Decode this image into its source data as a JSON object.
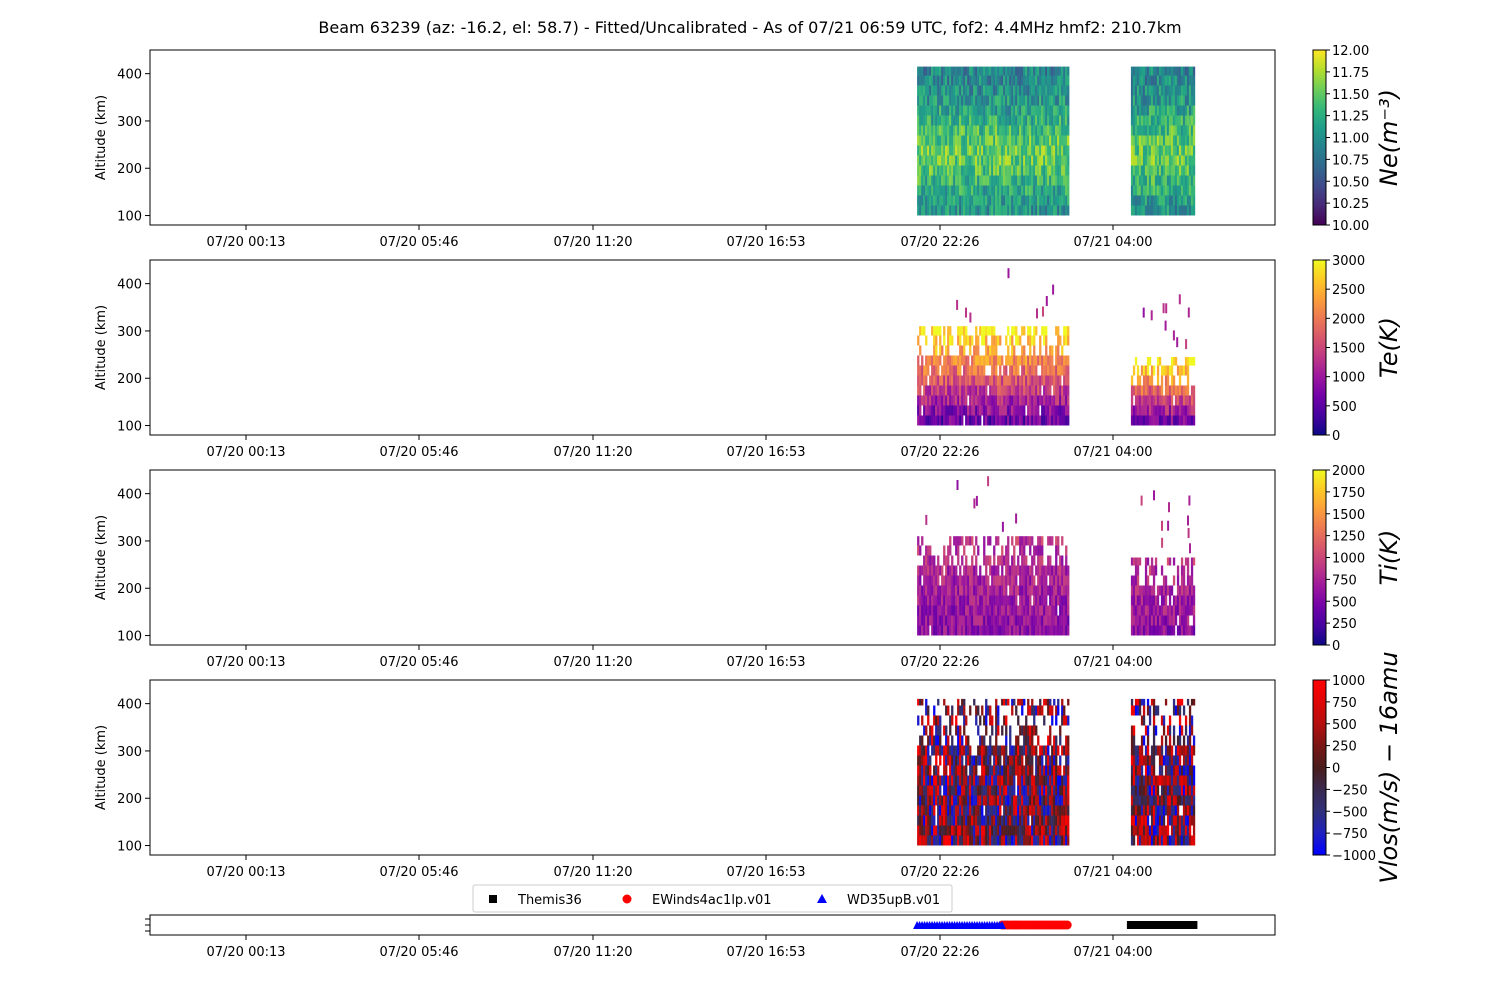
{
  "title": "Beam 63239 (az: -16.2, el: 58.7) - Fitted/Uncalibrated - As of 07/21 06:59 UTC, fof2: 4.4MHz  hmf2: 210.7km",
  "colors": {
    "themis": "#000000",
    "ewinds": "#ff0000",
    "wd35": "#0000ff"
  },
  "chart_data": [
    {
      "type": "heatmap",
      "name": "ne",
      "ylabel": "Altitude (km)",
      "colorbar_label": "Ne(m⁻³)",
      "colormap": "viridis",
      "clim": [
        10.0,
        12.0
      ],
      "colorbar_ticks": [
        "10.00",
        "10.25",
        "10.50",
        "10.75",
        "11.00",
        "11.25",
        "11.50",
        "11.75",
        "12.00"
      ],
      "yticks": [
        100,
        200,
        300,
        400
      ],
      "ylim": [
        80,
        450
      ],
      "xtick_labels": [
        "07/20 00:13",
        "07/20 05:46",
        "07/20 11:20",
        "07/20 16:53",
        "07/20 22:26",
        "07/21 04:00"
      ],
      "data_blocks": [
        {
          "start": "07/20 21:46",
          "end": "07/21 02:38",
          "alt_min": 100,
          "alt_max": 415
        },
        {
          "start": "07/21 04:38",
          "end": "07/21 06:40",
          "alt_min": 100,
          "alt_max": 415
        }
      ]
    },
    {
      "type": "heatmap",
      "name": "te",
      "ylabel": "Altitude (km)",
      "colorbar_label": "Te(K)",
      "colormap": "plasma",
      "clim": [
        0,
        3000
      ],
      "colorbar_ticks": [
        "0",
        "500",
        "1000",
        "1500",
        "2000",
        "2500",
        "3000"
      ],
      "yticks": [
        100,
        200,
        300,
        400
      ],
      "ylim": [
        80,
        450
      ],
      "xtick_labels": [
        "07/20 00:13",
        "07/20 05:46",
        "07/20 11:20",
        "07/20 16:53",
        "07/20 22:26",
        "07/21 04:00"
      ],
      "data_blocks": [
        {
          "start": "07/20 21:46",
          "end": "07/21 02:38",
          "alt_min": 100,
          "alt_max": 310
        },
        {
          "start": "07/21 04:38",
          "end": "07/21 06:40",
          "alt_min": 100,
          "alt_max": 245
        }
      ]
    },
    {
      "type": "heatmap",
      "name": "ti",
      "ylabel": "Altitude (km)",
      "colorbar_label": "Ti(K)",
      "colormap": "plasma",
      "clim": [
        0,
        2000
      ],
      "colorbar_ticks": [
        "0",
        "250",
        "500",
        "750",
        "1000",
        "1250",
        "1500",
        "1750",
        "2000"
      ],
      "yticks": [
        100,
        200,
        300,
        400
      ],
      "ylim": [
        80,
        450
      ],
      "xtick_labels": [
        "07/20 00:13",
        "07/20 05:46",
        "07/20 11:20",
        "07/20 16:53",
        "07/20 22:26",
        "07/21 04:00"
      ],
      "data_blocks": [
        {
          "start": "07/20 21:46",
          "end": "07/21 02:38",
          "alt_min": 100,
          "alt_max": 310
        },
        {
          "start": "07/21 04:38",
          "end": "07/21 06:40",
          "alt_min": 100,
          "alt_max": 265
        }
      ]
    },
    {
      "type": "heatmap",
      "name": "vlos",
      "ylabel": "Altitude (km)",
      "colorbar_label": "Vlos(m/s) − 16amu",
      "colormap": "bwr-dark",
      "clim": [
        -1000,
        1000
      ],
      "colorbar_ticks": [
        "−1000",
        "−750",
        "−500",
        "−250",
        "0",
        "250",
        "500",
        "750",
        "1000"
      ],
      "yticks": [
        100,
        200,
        300,
        400
      ],
      "ylim": [
        80,
        450
      ],
      "xtick_labels": [
        "07/20 00:13",
        "07/20 05:46",
        "07/20 11:20",
        "07/20 16:53",
        "07/20 22:26",
        "07/21 04:00"
      ],
      "data_blocks": [
        {
          "start": "07/20 21:46",
          "end": "07/21 02:38",
          "alt_min": 100,
          "alt_max": 410
        },
        {
          "start": "07/21 04:38",
          "end": "07/21 06:40",
          "alt_min": 100,
          "alt_max": 410
        }
      ]
    },
    {
      "type": "scatter",
      "name": "modes",
      "legend": "above",
      "xtick_labels": [
        "07/20 00:13",
        "07/20 05:46",
        "07/20 11:20",
        "07/20 16:53",
        "07/20 22:26",
        "07/21 04:00"
      ],
      "series": [
        {
          "name": "Themis36",
          "marker": "square",
          "color": "#000000",
          "start": "07/21 04:38",
          "end": "07/21 06:40"
        },
        {
          "name": "EWinds4ac1lp.v01",
          "marker": "circle",
          "color": "#ff0000",
          "start": "07/21 00:30",
          "end": "07/21 02:38"
        },
        {
          "name": "WD35upB.v01",
          "marker": "triangle",
          "color": "#0000ff",
          "start": "07/20 21:46",
          "end": "07/21 00:30"
        }
      ]
    }
  ]
}
